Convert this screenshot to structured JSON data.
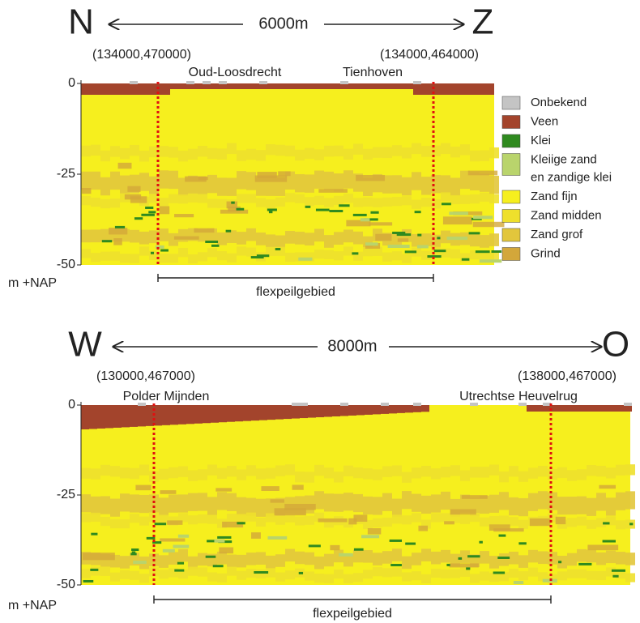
{
  "sections": [
    {
      "left": "N",
      "right": "Z",
      "distance": "6000m",
      "left_coord": "(134000,470000)",
      "right_coord": "(134000,464000)",
      "places": [
        "Oud-Loosdrecht",
        "Tienhoven"
      ],
      "yticks": [
        "0",
        "-25",
        "-50"
      ],
      "y_unit": "m +NAP",
      "zone": "flexpeilgebied"
    },
    {
      "left": "W",
      "right": "O",
      "distance": "8000m",
      "left_coord": "(130000,467000)",
      "right_coord": "(138000,467000)",
      "places": [
        "Polder Mijnden",
        "Utrechtse Heuvelrug"
      ],
      "yticks": [
        "0",
        "-25",
        "-50"
      ],
      "y_unit": "m +NAP",
      "zone": "flexpeilgebied"
    }
  ],
  "legend": [
    {
      "lines": [
        "Onbekend"
      ],
      "color": "#c4c4c4"
    },
    {
      "lines": [
        "Veen"
      ],
      "color": "#a3442c"
    },
    {
      "lines": [
        "Klei"
      ],
      "color": "#2f8a1f"
    },
    {
      "lines": [
        "Kleiige zand",
        "en zandige klei"
      ],
      "color": "#b9d46c"
    },
    {
      "lines": [
        "Zand fijn"
      ],
      "color": "#f6ef1e"
    },
    {
      "lines": [
        "Zand midden"
      ],
      "color": "#eee02c"
    },
    {
      "lines": [
        "Zand grof"
      ],
      "color": "#e2c63c"
    },
    {
      "lines": [
        "Grind"
      ],
      "color": "#d3a73a"
    }
  ]
}
